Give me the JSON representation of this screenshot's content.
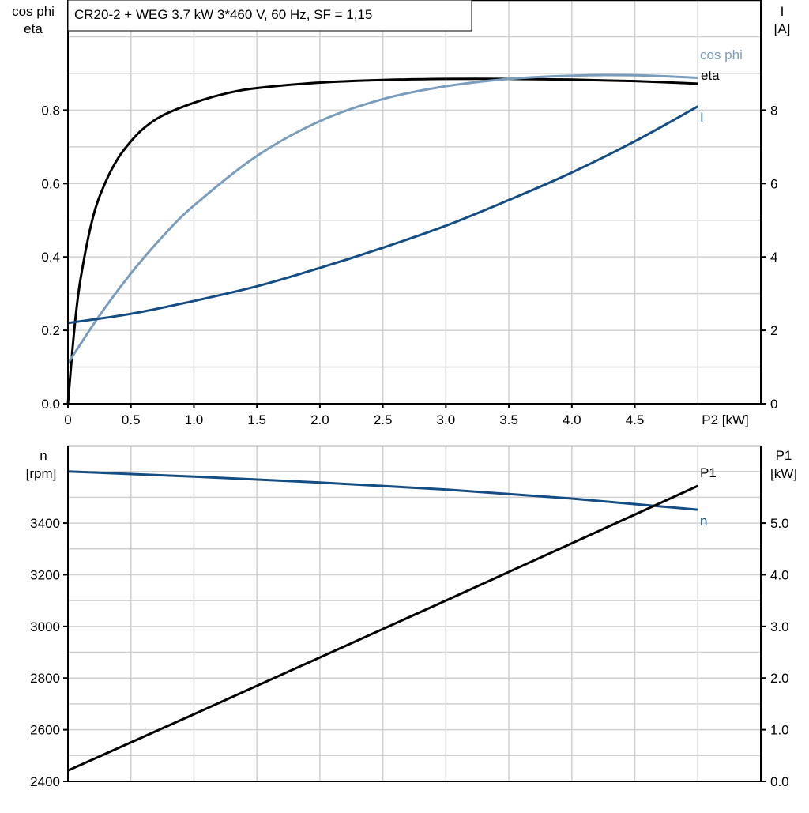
{
  "title": "CR20-2 + WEG   3.7 kW   3*460 V, 60 Hz, SF = 1,15",
  "colors": {
    "eta": "#000000",
    "cos_phi": "#7b9dbd",
    "I": "#134d83",
    "n": "#134d83",
    "P1": "#000000",
    "grid": "#d0d0d0"
  },
  "chart_data": [
    {
      "type": "line",
      "xlabel": "P2 [kW]",
      "xlim": [
        0,
        5.5
      ],
      "x_ticks": [
        "0",
        "0.5",
        "1.0",
        "1.5",
        "2.0",
        "2.5",
        "3.0",
        "3.5",
        "4.0",
        "4.5"
      ],
      "ylabel_left": [
        "cos phi",
        "eta"
      ],
      "ylim_left": [
        0,
        1.1
      ],
      "y_ticks_left": [
        "0.0",
        "0.2",
        "0.4",
        "0.6",
        "0.8"
      ],
      "ylabel_right": [
        "I",
        "[A]"
      ],
      "ylim_right": [
        0,
        11
      ],
      "y_ticks_right": [
        "0",
        "2",
        "4",
        "6",
        "8"
      ],
      "grid": true,
      "series": [
        {
          "name": "eta",
          "axis": "left",
          "x": [
            0,
            0.05,
            0.1,
            0.2,
            0.3,
            0.4,
            0.5,
            0.6,
            0.75,
            1.0,
            1.25,
            1.5,
            2.0,
            2.5,
            3.0,
            3.5,
            4.0,
            4.5,
            5.0
          ],
          "y": [
            0,
            0.2,
            0.34,
            0.51,
            0.605,
            0.67,
            0.715,
            0.75,
            0.785,
            0.82,
            0.845,
            0.86,
            0.875,
            0.882,
            0.885,
            0.885,
            0.883,
            0.879,
            0.872
          ]
        },
        {
          "name": "cos phi",
          "axis": "left",
          "x": [
            0,
            0.25,
            0.5,
            0.75,
            1.0,
            1.5,
            2.0,
            2.5,
            3.0,
            3.5,
            4.0,
            4.5,
            5.0
          ],
          "y": [
            0.11,
            0.24,
            0.355,
            0.455,
            0.54,
            0.675,
            0.77,
            0.83,
            0.865,
            0.885,
            0.894,
            0.895,
            0.888
          ]
        },
        {
          "name": "I",
          "axis": "right",
          "x": [
            0,
            0.5,
            1.0,
            1.5,
            2.0,
            2.5,
            3.0,
            3.5,
            4.0,
            4.5,
            5.0
          ],
          "y": [
            2.2,
            2.45,
            2.8,
            3.2,
            3.7,
            4.25,
            4.85,
            5.55,
            6.3,
            7.15,
            8.1
          ]
        }
      ]
    },
    {
      "type": "line",
      "xlim": [
        0,
        5.5
      ],
      "ylabel_left": [
        "n",
        "[rpm]"
      ],
      "ylim_left": [
        2400,
        3700
      ],
      "y_ticks_left": [
        "2400",
        "2600",
        "2800",
        "3000",
        "3200",
        "3400"
      ],
      "ylabel_right": [
        "P1",
        "[kW]"
      ],
      "ylim_right": [
        0,
        6.5
      ],
      "y_ticks_right": [
        "0.0",
        "1.0",
        "2.0",
        "3.0",
        "4.0",
        "5.0"
      ],
      "grid": true,
      "series": [
        {
          "name": "n",
          "axis": "left",
          "x": [
            0,
            1,
            2,
            3,
            4,
            5
          ],
          "y": [
            3600,
            3580,
            3557,
            3530,
            3495,
            3452
          ]
        },
        {
          "name": "P1",
          "axis": "right",
          "x": [
            0,
            1,
            2,
            3,
            4,
            5
          ],
          "y": [
            0.21,
            1.3,
            2.4,
            3.5,
            4.61,
            5.72
          ]
        }
      ]
    }
  ]
}
